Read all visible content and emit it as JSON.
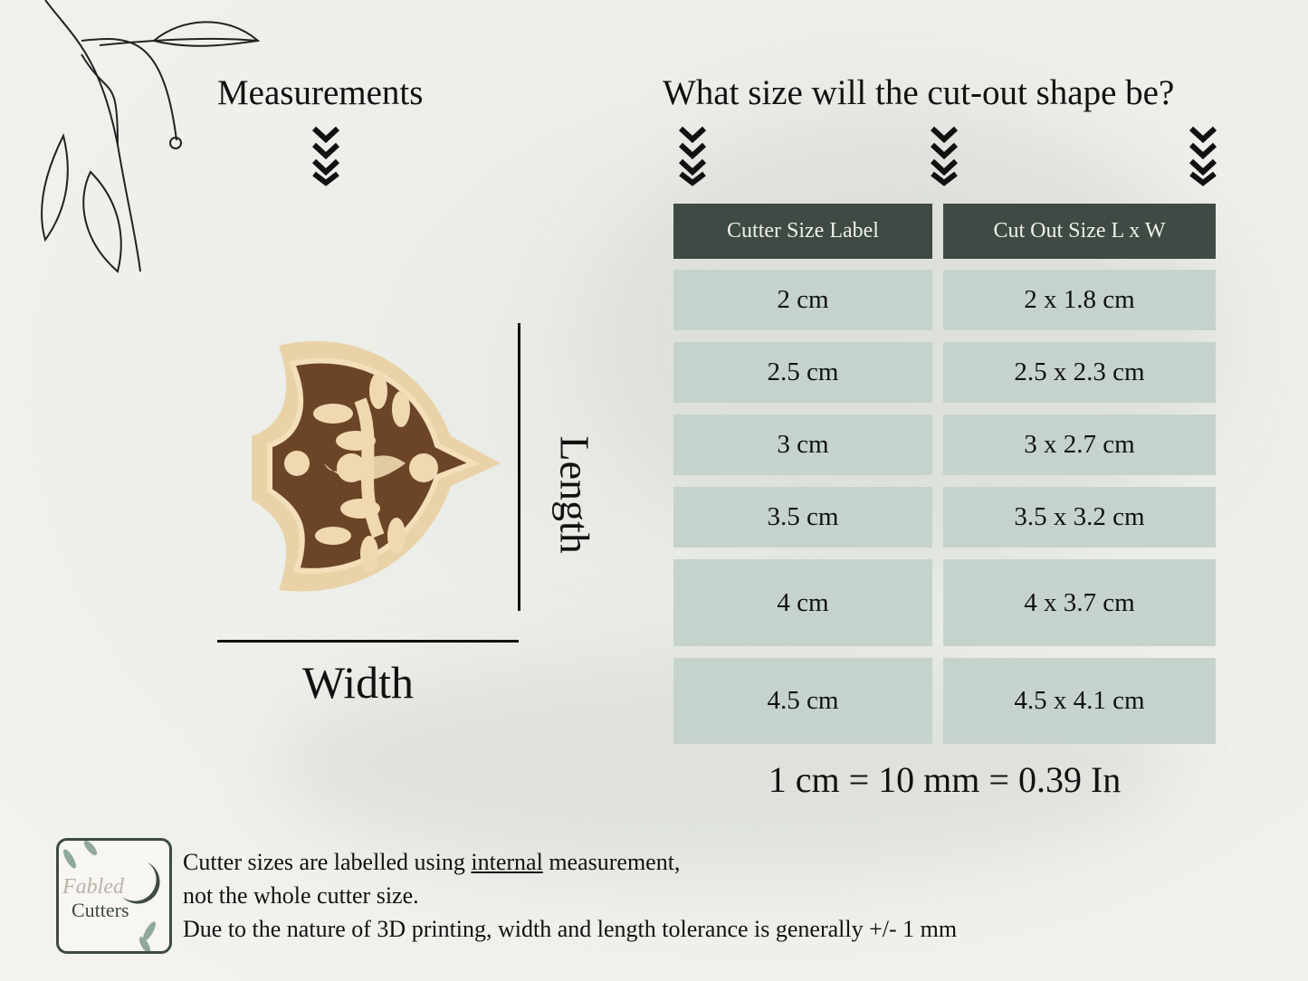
{
  "left": {
    "title": "Measurements",
    "length_label": "Length",
    "width_label": "Width"
  },
  "right": {
    "title": "What size will the cut-out shape be?",
    "table": {
      "headers": [
        "Cutter Size Label",
        "Cut Out Size L x W"
      ],
      "rows": [
        [
          "2 cm",
          "2 x 1.8 cm"
        ],
        [
          "2.5 cm",
          "2.5 x 2.3 cm"
        ],
        [
          "3 cm",
          "3 x 2.7 cm"
        ],
        [
          "3.5 cm",
          "3.5 x 3.2 cm"
        ],
        [
          "4 cm",
          "4 x 3.7 cm"
        ],
        [
          "4.5 cm",
          "4.5 x 4.1 cm"
        ]
      ]
    },
    "conversion": "1 cm = 10 mm = 0.39 In"
  },
  "footer": {
    "logo": {
      "script": "Fabled",
      "name": "Cutters"
    },
    "line1_before": "Cutter sizes are labelled using ",
    "line1_underlined": "internal",
    "line1_after": " measurement,",
    "line2": "not the whole cutter size.",
    "line3": "Due to the nature of 3D printing, width and length tolerance is generally +/- 1 mm"
  },
  "colors": {
    "header_bg": "#3e4a43",
    "cell_bg": "#c6d3cc",
    "accent_green": "#8fa99a"
  },
  "icons": [
    "leaf-branch-icon",
    "chevrons-down-icon",
    "dove-cookie-cutter-image",
    "moon-icon"
  ]
}
